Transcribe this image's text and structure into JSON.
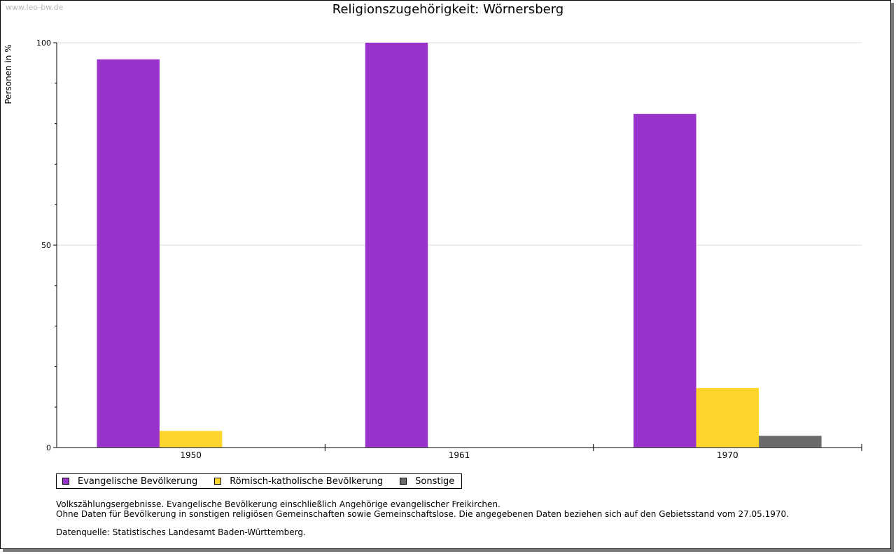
{
  "watermark": "www.leo-bw.de",
  "notes": {
    "line1": "Volkszählungsergebnisse. Evangelische Bevölkerung einschließlich Angehörige evangelischer Freikirchen.",
    "line2": "Ohne Daten für Bevölkerung in sonstigen religiösen Gemeinschaften sowie Gemeinschaftslose. Die angegebenen Daten beziehen sich auf den Gebietsstand vom 27.05.1970.",
    "source": "Datenquelle: Statistisches Landesamt Baden-Württemberg."
  },
  "chart_data": {
    "type": "bar",
    "title": "Religionszugehörigkeit: Wörnersberg",
    "xlabel": "",
    "ylabel": "Personen in %",
    "categories": [
      "1950",
      "1961",
      "1970"
    ],
    "ylim": [
      0,
      100
    ],
    "yticks": [
      0,
      50,
      100
    ],
    "grid": true,
    "legend_position": "bottom-left",
    "series": [
      {
        "name": "Evangelische Bevölkerung",
        "color": "#9933cc",
        "values": [
          95.9,
          100,
          82.4
        ]
      },
      {
        "name": "Römisch-katholische Bevölkerung",
        "color": "#fdd52b",
        "values": [
          4.1,
          0,
          14.7
        ]
      },
      {
        "name": "Sonstige",
        "color": "#6b6b6b",
        "values": [
          0,
          0,
          2.9
        ]
      }
    ]
  }
}
